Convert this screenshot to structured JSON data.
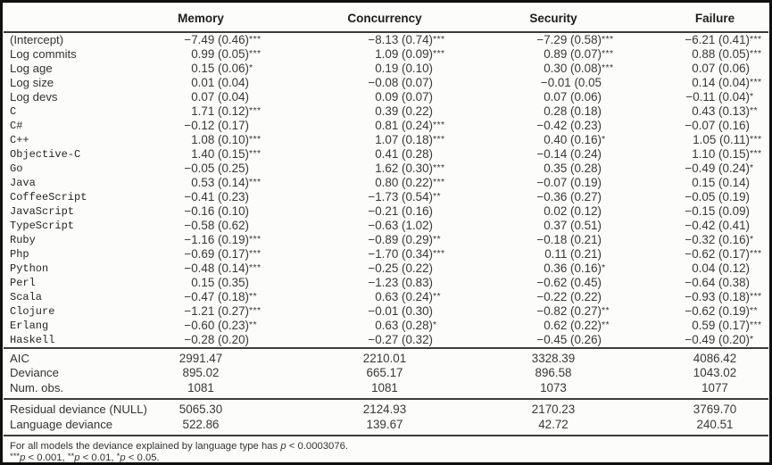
{
  "table": {
    "columns": [
      "Memory",
      "Concurrency",
      "Security",
      "Failure"
    ],
    "coef_rows": [
      {
        "label": "(Intercept)",
        "mono": false,
        "values": [
          "−7.49 (0.46)***",
          "−8.13 (0.74)***",
          "−7.29 (0.58)***",
          "−6.21 (0.41)***"
        ]
      },
      {
        "label": "Log commits",
        "mono": false,
        "values": [
          "0.99 (0.05)***",
          "1.09 (0.09)***",
          "0.89 (0.07)***",
          "0.88 (0.05)***"
        ]
      },
      {
        "label": "Log age",
        "mono": false,
        "values": [
          "0.15 (0.06)*",
          "0.19 (0.10)",
          "0.30 (0.08)***",
          "0.07 (0.06)"
        ]
      },
      {
        "label": "Log size",
        "mono": false,
        "values": [
          "0.01 (0.04)",
          "−0.08 (0.07)",
          "−0.01 (0.05",
          "0.14 (0.04)***"
        ]
      },
      {
        "label": "Log devs",
        "mono": false,
        "values": [
          "0.07 (0.04)",
          "0.09 (0.07)",
          "0.07 (0.06)",
          "−0.11 (0.04)*"
        ]
      },
      {
        "label": "C",
        "mono": true,
        "values": [
          "1.71 (0.12)***",
          "0.39 (0.22)",
          "0.28 (0.18)",
          "0.43 (0.13)**"
        ]
      },
      {
        "label": "C#",
        "mono": true,
        "values": [
          "−0.12 (0.17)",
          "0.81 (0.24)***",
          "−0.42 (0.23)",
          "−0.07 (0.16)"
        ]
      },
      {
        "label": "C++",
        "mono": true,
        "values": [
          "1.08 (0.10)***",
          "1.07 (0.18)***",
          "0.40 (0.16)*",
          "1.05 (0.11)***"
        ]
      },
      {
        "label": "Objective-C",
        "mono": true,
        "values": [
          "1.40 (0.15)***",
          "0.41 (0.28)",
          "−0.14 (0.24)",
          "1.10 (0.15)***"
        ]
      },
      {
        "label": "Go",
        "mono": true,
        "values": [
          "−0.05 (0.25)",
          "1.62 (0.30)***",
          "0.35 (0.28)",
          "−0.49 (0.24)*"
        ]
      },
      {
        "label": "Java",
        "mono": true,
        "values": [
          "0.53 (0.14)***",
          "0.80 (0.22)***",
          "−0.07 (0.19)",
          "0.15 (0.14)"
        ]
      },
      {
        "label": "CoffeeScript",
        "mono": true,
        "values": [
          "−0.41 (0.23)",
          "−1.73 (0.54)**",
          "−0.36 (0.27)",
          "−0.05 (0.19)"
        ]
      },
      {
        "label": "JavaScript",
        "mono": true,
        "values": [
          "−0.16 (0.10)",
          "−0.21 (0.16)",
          "0.02 (0.12)",
          "−0.15 (0.09)"
        ]
      },
      {
        "label": "TypeScript",
        "mono": true,
        "values": [
          "−0.58 (0.62)",
          "−0.63 (1.02)",
          "0.37 (0.51)",
          "−0.42 (0.41)"
        ]
      },
      {
        "label": "Ruby",
        "mono": true,
        "values": [
          "−1.16 (0.19)***",
          "−0.89 (0.29)**",
          "−0.18 (0.21)",
          "−0.32 (0.16)*"
        ]
      },
      {
        "label": "Php",
        "mono": true,
        "values": [
          "−0.69 (0.17)***",
          "−1.70 (0.34)***",
          "0.11 (0.21)",
          "−0.62 (0.17)***"
        ]
      },
      {
        "label": "Python",
        "mono": true,
        "values": [
          "−0.48 (0.14)***",
          "−0.25 (0.22)",
          "0.36 (0.16)*",
          "0.04 (0.12)"
        ]
      },
      {
        "label": "Perl",
        "mono": true,
        "values": [
          "0.15 (0.35)",
          "−1.23 (0.83)",
          "−0.62 (0.45)",
          "−0.64 (0.38)"
        ]
      },
      {
        "label": "Scala",
        "mono": true,
        "values": [
          "−0.47 (0.18)**",
          "0.63 (0.24)**",
          "−0.22 (0.22)",
          "−0.93 (0.18)***"
        ]
      },
      {
        "label": "Clojure",
        "mono": true,
        "values": [
          "−1.21 (0.27)***",
          "−0.01 (0.30)",
          "−0.82 (0.27)**",
          "−0.62 (0.19)**"
        ]
      },
      {
        "label": "Erlang",
        "mono": true,
        "values": [
          "−0.60 (0.23)**",
          "0.63 (0.28)*",
          "0.62 (0.22)**",
          "0.59 (0.17)***"
        ]
      },
      {
        "label": "Haskell",
        "mono": true,
        "values": [
          "−0.28 (0.20)",
          "−0.27 (0.32)",
          "−0.45 (0.26)",
          "−0.49 (0.20)*"
        ]
      }
    ],
    "stats_rows": [
      {
        "label": "AIC",
        "values": [
          "2991.47",
          "2210.01",
          "3328.39",
          "4086.42"
        ]
      },
      {
        "label": "Deviance",
        "values": [
          "895.02",
          "665.17",
          "896.58",
          "1043.02"
        ]
      },
      {
        "label": "Num. obs.",
        "values": [
          "1081",
          "1081",
          "1073",
          "1077"
        ]
      }
    ],
    "null_rows": [
      {
        "label": "Residual deviance (NULL)",
        "values": [
          "5065.30",
          "2124.93",
          "2170.23",
          "3769.70"
        ]
      },
      {
        "label": "Language deviance",
        "values": [
          "522.86",
          "139.67",
          "42.72",
          "240.51"
        ]
      }
    ],
    "footnotes": [
      "For all models the deviance explained by language type has p < 0.0003076.",
      "***p < 0.001, **p < 0.01, *p < 0.05."
    ]
  }
}
